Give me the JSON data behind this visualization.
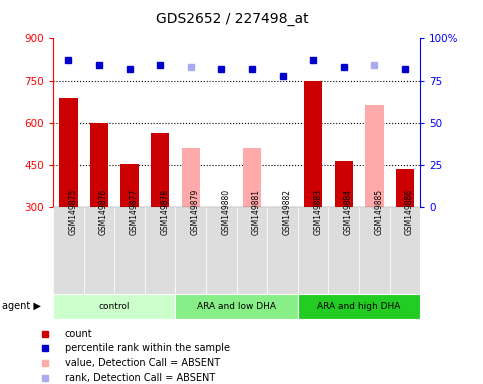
{
  "title": "GDS2652 / 227498_at",
  "samples": [
    "GSM149875",
    "GSM149876",
    "GSM149877",
    "GSM149878",
    "GSM149879",
    "GSM149880",
    "GSM149881",
    "GSM149882",
    "GSM149883",
    "GSM149884",
    "GSM149885",
    "GSM149886"
  ],
  "count_values": [
    690,
    600,
    455,
    565,
    null,
    null,
    null,
    null,
    750,
    465,
    null,
    435
  ],
  "count_absent_values": [
    null,
    null,
    null,
    null,
    510,
    null,
    510,
    null,
    null,
    null,
    665,
    null
  ],
  "percentile_values": [
    87,
    84,
    82,
    84,
    null,
    82,
    82,
    78,
    87,
    83,
    null,
    82
  ],
  "percentile_absent_values": [
    null,
    null,
    null,
    null,
    83,
    null,
    null,
    null,
    null,
    null,
    84,
    null
  ],
  "ylim_left": [
    300,
    900
  ],
  "ylim_right": [
    0,
    100
  ],
  "yticks_left": [
    300,
    450,
    600,
    750,
    900
  ],
  "yticks_right": [
    0,
    25,
    50,
    75,
    100
  ],
  "groups": [
    {
      "label": "control",
      "start": 0,
      "end": 3
    },
    {
      "label": "ARA and low DHA",
      "start": 4,
      "end": 7
    },
    {
      "label": "ARA and high DHA",
      "start": 8,
      "end": 11
    }
  ],
  "group_colors": [
    "#ccffcc",
    "#88ee88",
    "#22cc22"
  ],
  "bar_color_present": "#cc0000",
  "bar_color_absent": "#ffaaaa",
  "dot_color_present": "#0000cc",
  "dot_color_absent": "#aaaaee",
  "bar_width": 0.6,
  "agent_label": "agent ▶",
  "legend_labels": [
    "count",
    "percentile rank within the sample",
    "value, Detection Call = ABSENT",
    "rank, Detection Call = ABSENT"
  ]
}
